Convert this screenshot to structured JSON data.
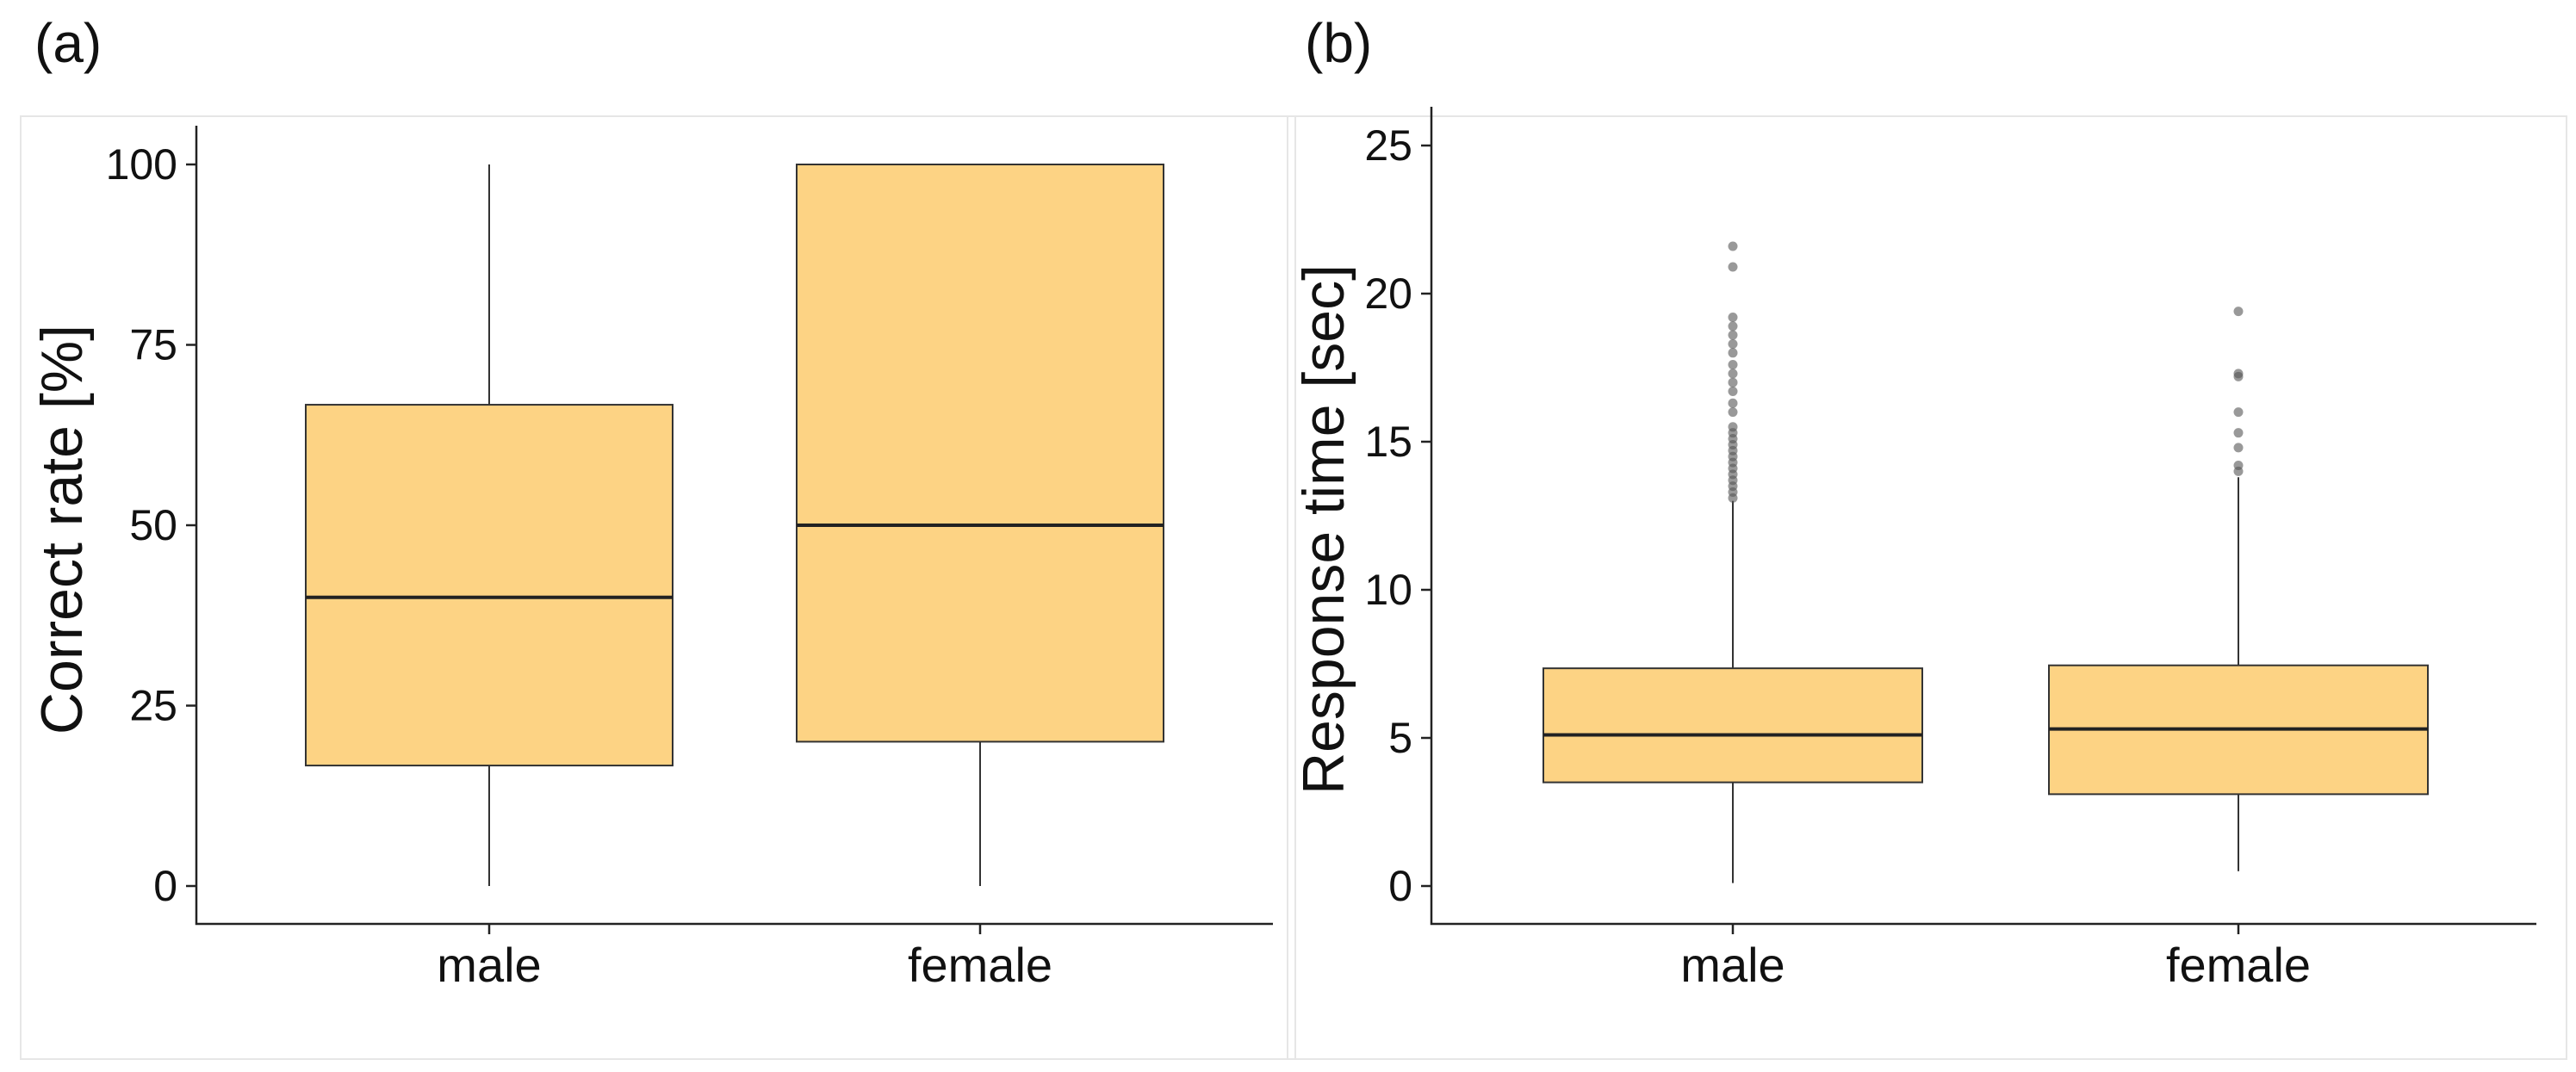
{
  "chart_data": [
    {
      "type": "box",
      "panel_label": "(a)",
      "title": "",
      "xlabel": "",
      "ylabel": "Correct rate [%]",
      "ylim": [
        0,
        100
      ],
      "yticks": [
        0,
        25,
        50,
        75,
        100
      ],
      "ytick_labels": [
        "0",
        "25",
        "50",
        "75",
        "100"
      ],
      "categories": [
        "male",
        "female"
      ],
      "box_color": "#FDD384",
      "boxes": [
        {
          "category": "male",
          "min": 0,
          "q1": 16.7,
          "median": 40,
          "q3": 66.7,
          "max": 100,
          "outliers": []
        },
        {
          "category": "female",
          "min": 0,
          "q1": 20,
          "median": 50,
          "q3": 100,
          "max": 100,
          "outliers": []
        }
      ]
    },
    {
      "type": "box",
      "panel_label": "(b)",
      "title": "",
      "xlabel": "",
      "ylabel": "Response time [sec]",
      "ylim": [
        0,
        25
      ],
      "yticks": [
        0,
        5,
        10,
        15,
        20,
        25
      ],
      "ytick_labels": [
        "0",
        "5",
        "10",
        "15",
        "20",
        "25"
      ],
      "categories": [
        "male",
        "female"
      ],
      "box_color": "#FDD384",
      "boxes": [
        {
          "category": "male",
          "min": 0.1,
          "q1": 3.5,
          "median": 5.1,
          "q3": 7.35,
          "max": 13.0,
          "outliers": [
            13.1,
            13.3,
            13.5,
            13.7,
            13.9,
            14.1,
            14.3,
            14.5,
            14.7,
            14.9,
            15.1,
            15.3,
            15.5,
            16.0,
            16.3,
            16.7,
            17.0,
            17.3,
            17.6,
            18.0,
            18.3,
            18.6,
            18.9,
            19.2,
            20.9,
            21.6
          ]
        },
        {
          "category": "female",
          "min": 0.5,
          "q1": 3.1,
          "median": 5.3,
          "q3": 7.45,
          "max": 13.8,
          "outliers": [
            14.0,
            14.2,
            14.8,
            15.3,
            16.0,
            17.2,
            17.3,
            19.4
          ]
        }
      ]
    }
  ]
}
